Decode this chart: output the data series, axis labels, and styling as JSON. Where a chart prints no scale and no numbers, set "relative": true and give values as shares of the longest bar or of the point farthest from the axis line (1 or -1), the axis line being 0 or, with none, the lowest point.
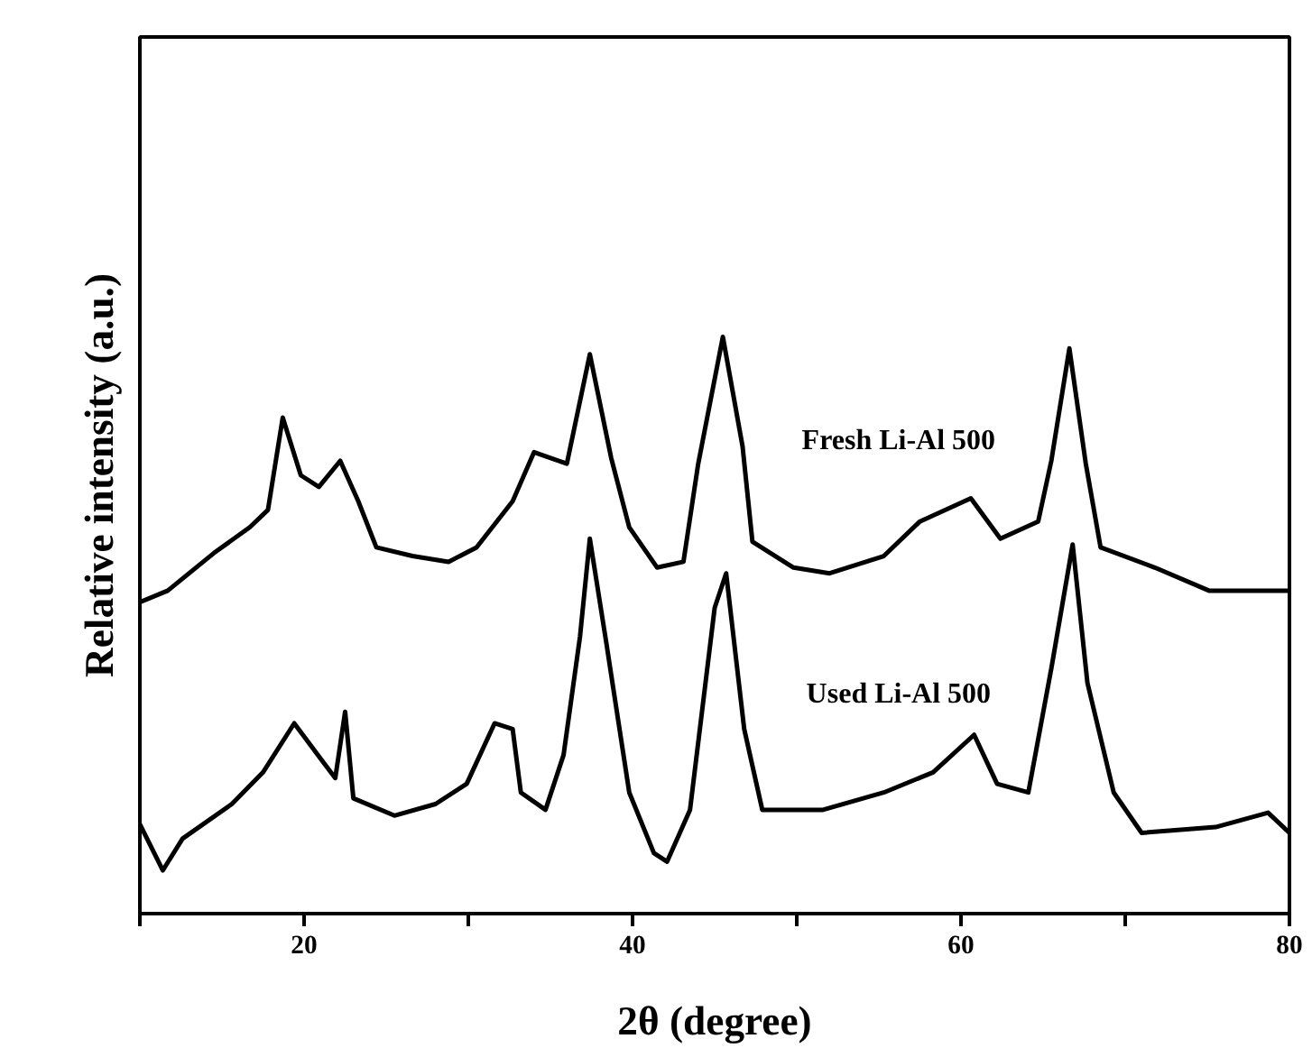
{
  "chart_data": {
    "type": "line",
    "relative": true,
    "xlabel": "2θ (degree)",
    "ylabel": "Relative intensity (a.u.)",
    "xlim": [
      10,
      80
    ],
    "xticks": [
      {
        "value": 10,
        "label": null
      },
      20,
      {
        "value": 30,
        "label": null
      },
      40,
      {
        "value": 50,
        "label": null
      },
      60,
      {
        "value": 70,
        "label": null
      },
      80
    ],
    "tick_labels": "x",
    "grid": false,
    "marker": "none",
    "line_style": "solid",
    "series": [
      {
        "name": "Fresh Li-Al 500",
        "color": "#000000",
        "x": [
          10.0,
          11.7,
          14.5,
          16.7,
          17.8,
          18.7,
          19.8,
          20.9,
          22.2,
          23.3,
          24.4,
          26.6,
          28.8,
          30.5,
          32.7,
          34.0,
          36.0,
          37.4,
          38.7,
          39.8,
          41.5,
          43.1,
          44.0,
          45.5,
          46.7,
          47.3,
          49.8,
          52.0,
          55.3,
          57.5,
          60.6,
          62.4,
          64.7,
          65.5,
          66.6,
          67.6,
          68.5,
          71.8,
          75.1,
          80.0
        ],
        "values": [
          0.54,
          0.56,
          0.625,
          0.67,
          0.7,
          0.86,
          0.76,
          0.74,
          0.785,
          0.715,
          0.635,
          0.62,
          0.61,
          0.635,
          0.715,
          0.8,
          0.78,
          0.97,
          0.79,
          0.67,
          0.6,
          0.61,
          0.78,
          1.0,
          0.81,
          0.645,
          0.6,
          0.59,
          0.62,
          0.68,
          0.72,
          0.65,
          0.68,
          0.785,
          0.98,
          0.78,
          0.635,
          0.6,
          0.56,
          0.56
        ]
      },
      {
        "name": "Used Li-Al 500",
        "color": "#000000",
        "x": [
          10.0,
          11.4,
          12.6,
          15.6,
          17.5,
          19.4,
          21.1,
          21.9,
          22.5,
          23.0,
          25.5,
          28.0,
          29.9,
          31.6,
          32.7,
          33.2,
          34.7,
          35.8,
          36.8,
          37.4,
          38.4,
          39.8,
          41.3,
          42.1,
          43.5,
          45.0,
          45.7,
          46.8,
          47.9,
          51.6,
          55.3,
          58.3,
          60.8,
          62.2,
          64.1,
          65.5,
          66.8,
          67.7,
          69.3,
          71.0,
          75.5,
          78.7,
          80.0
        ],
        "values": [
          0.155,
          0.075,
          0.13,
          0.19,
          0.245,
          0.33,
          0.265,
          0.235,
          0.35,
          0.2,
          0.17,
          0.19,
          0.225,
          0.33,
          0.32,
          0.21,
          0.18,
          0.275,
          0.48,
          0.65,
          0.47,
          0.21,
          0.105,
          0.09,
          0.18,
          0.53,
          0.59,
          0.32,
          0.18,
          0.18,
          0.21,
          0.245,
          0.31,
          0.225,
          0.21,
          0.425,
          0.64,
          0.4,
          0.21,
          0.14,
          0.15,
          0.175,
          0.14
        ]
      }
    ]
  }
}
